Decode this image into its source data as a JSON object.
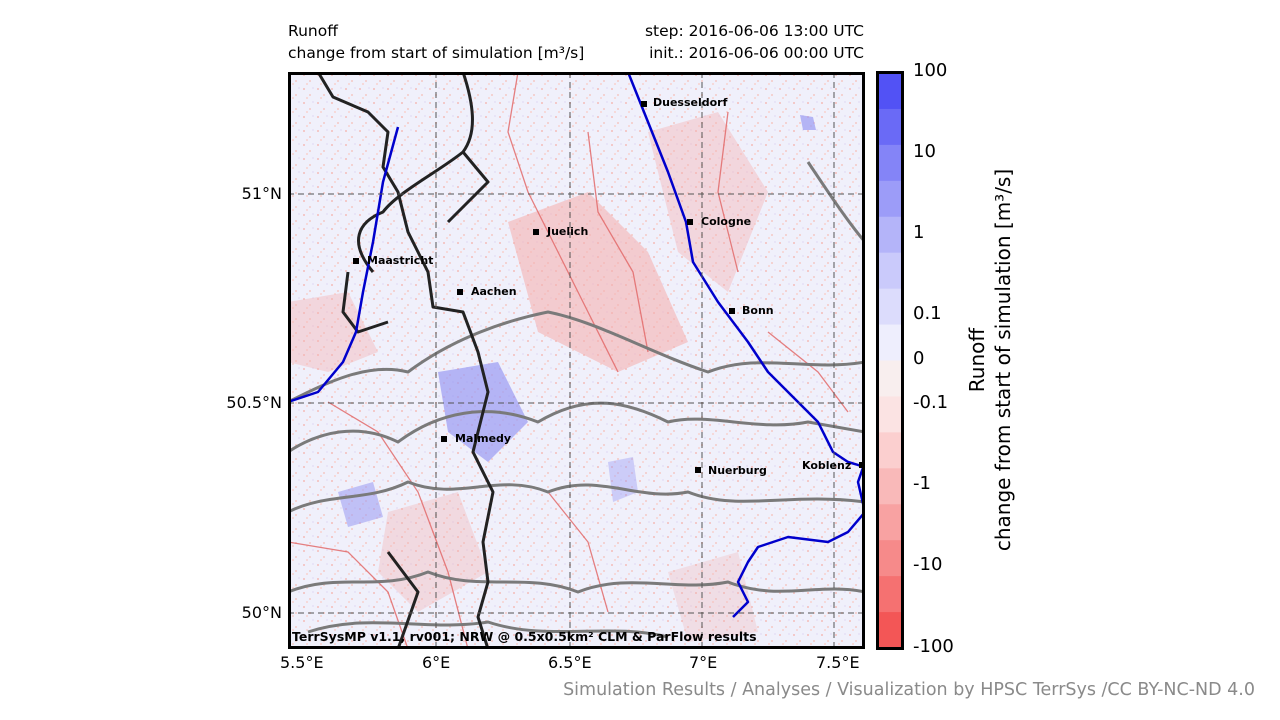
{
  "header": {
    "variable": "Runoff",
    "description": "change from start of simulation [m³/s]",
    "step": "step: 2016-06-06 13:00 UTC",
    "init": "init.: 2016-06-06 00:00 UTC"
  },
  "map": {
    "lat_ticks": [
      "51°N",
      "50.5°N",
      "50°N"
    ],
    "lon_ticks": [
      "5.5°E",
      "6°E",
      "6.5°E",
      "7°E",
      "7.5°E"
    ],
    "cities": [
      {
        "name": "Duesseldorf"
      },
      {
        "name": "Cologne"
      },
      {
        "name": "Juelich"
      },
      {
        "name": "Maastricht"
      },
      {
        "name": "Aachen"
      },
      {
        "name": "Bonn"
      },
      {
        "name": "Malmedy"
      },
      {
        "name": "Nuerburg"
      },
      {
        "name": "Koblenz"
      }
    ],
    "attribution": "TerrSysMP v1.1, rv001; NRW @ 0.5x0.5km² CLM & ParFlow results"
  },
  "colorbar": {
    "title_line1": "Runoff",
    "title_line2": "change from start of simulation [m³/s]",
    "ticks": [
      "100",
      "10",
      "1",
      "0.1",
      "0",
      "-0.1",
      "-1",
      "-10",
      "-100"
    ],
    "colors": [
      "#5252f5",
      "#6a6af6",
      "#8484f7",
      "#9c9cf8",
      "#b4b4f9",
      "#cacafb",
      "#dcdcfc",
      "#eeeefd",
      "#f8eeee",
      "#fbe3e3",
      "#fbcfcf",
      "#f9b9b9",
      "#f8a2a2",
      "#f68a8a",
      "#f57171",
      "#f35656"
    ]
  },
  "footer": {
    "credits": "Simulation Results / Analyses / Visualization by HPSC TerrSys /CC BY-NC-ND 4.0"
  }
}
